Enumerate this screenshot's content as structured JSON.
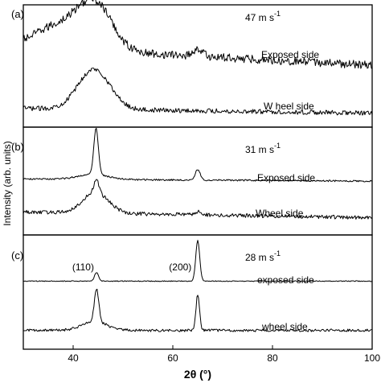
{
  "chart_data": {
    "type": "line",
    "xlabel": "2θ (°)",
    "ylabel": "Intensity (arb. units)",
    "xlim": [
      30,
      100
    ],
    "x_ticks": [
      "40",
      "60",
      "80",
      "100"
    ],
    "panels": [
      {
        "label": "(a)",
        "condition": "47 m s",
        "condition_exp": "-1",
        "ylim": [
          0,
          1
        ],
        "series": [
          {
            "name": "Exposed side",
            "baseline": 0.66,
            "noise": 0.035,
            "peaks": [
              {
                "x": 37.5,
                "height": 0.2,
                "width": 5.0
              },
              {
                "x": 44.5,
                "height": 0.36,
                "width": 3.4
              },
              {
                "x": 65.0,
                "height": 0.06,
                "width": 1.0
              }
            ],
            "slope": -0.0022
          },
          {
            "name": "W heel side",
            "baseline": 0.14,
            "noise": 0.02,
            "peaks": [
              {
                "x": 44.2,
                "height": 0.34,
                "width": 3.2
              }
            ],
            "slope": -0.0006
          }
        ]
      },
      {
        "label": "(b)",
        "condition": "31 m s",
        "condition_exp": "-1",
        "ylim": [
          0,
          1
        ],
        "series": [
          {
            "name": "Exposed side",
            "baseline": 0.52,
            "noise": 0.008,
            "peaks": [
              {
                "x": 44.6,
                "height": 0.45,
                "width": 0.45
              },
              {
                "x": 44.0,
                "height": 0.05,
                "width": 3.0
              },
              {
                "x": 65.0,
                "height": 0.1,
                "width": 0.5
              }
            ],
            "slope": -0.0003
          },
          {
            "name": "Wheel side",
            "baseline": 0.2,
            "noise": 0.018,
            "peaks": [
              {
                "x": 44.5,
                "height": 0.2,
                "width": 2.6
              },
              {
                "x": 44.7,
                "height": 0.12,
                "width": 0.5
              },
              {
                "x": 65.0,
                "height": 0.03,
                "width": 0.6
              }
            ],
            "slope": -0.0008
          }
        ]
      },
      {
        "label": "(c)",
        "condition": "28 m s",
        "condition_exp": "-1",
        "ylim": [
          0,
          1
        ],
        "annotations": [
          {
            "text": "(110)",
            "x": 42.0
          },
          {
            "text": "(200)",
            "x": 61.5
          }
        ],
        "series": [
          {
            "name": "exposed side",
            "baseline": 0.6,
            "noise": 0.004,
            "peaks": [
              {
                "x": 44.7,
                "height": 0.08,
                "width": 0.4
              },
              {
                "x": 65.0,
                "height": 0.37,
                "width": 0.4
              }
            ],
            "slope": 0
          },
          {
            "name": "wheel side",
            "baseline": 0.15,
            "noise": 0.012,
            "peaks": [
              {
                "x": 44.7,
                "height": 0.3,
                "width": 0.45
              },
              {
                "x": 44.3,
                "height": 0.08,
                "width": 2.5
              },
              {
                "x": 65.0,
                "height": 0.33,
                "width": 0.35
              }
            ],
            "slope": 0
          }
        ]
      }
    ]
  }
}
